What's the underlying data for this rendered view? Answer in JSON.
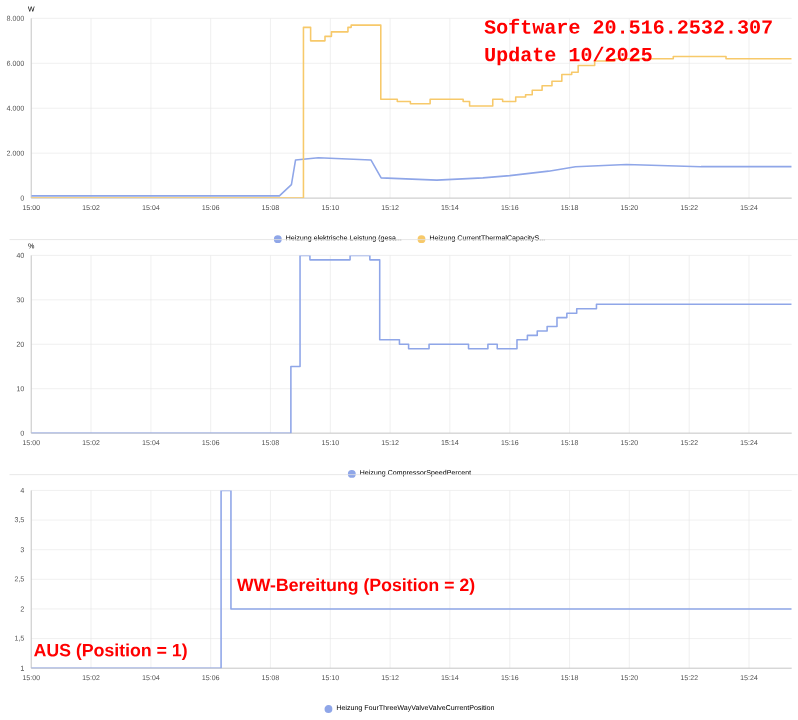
{
  "chart_data": [
    {
      "type": "line",
      "ylabel": "W",
      "legend": "bottom",
      "grid": true,
      "xlim": [
        15,
        15.4238
      ],
      "ylim": [
        0,
        8000
      ],
      "xticks": [
        {
          "value": 15,
          "label": "15:00"
        },
        {
          "value": 15.0333,
          "label": "15:02"
        },
        {
          "value": 15.0667,
          "label": "15:04"
        },
        {
          "value": 15.1,
          "label": "15:06"
        },
        {
          "value": 15.1333,
          "label": "15:08"
        },
        {
          "value": 15.1667,
          "label": "15:10"
        },
        {
          "value": 15.2,
          "label": "15:12"
        },
        {
          "value": 15.2333,
          "label": "15:14"
        },
        {
          "value": 15.2667,
          "label": "15:16"
        },
        {
          "value": 15.3,
          "label": "15:18"
        },
        {
          "value": 15.3333,
          "label": "15:20"
        },
        {
          "value": 15.3667,
          "label": "15:22"
        },
        {
          "value": 15.4,
          "label": "15:24"
        }
      ],
      "yticks": [
        0,
        {
          "value": 2000,
          "label": "2.000"
        },
        {
          "value": 4000,
          "label": "4.000"
        },
        {
          "value": 6000,
          "label": "6.000"
        },
        {
          "value": 8000,
          "label": "8.000"
        }
      ],
      "annotations": [
        "Software 20.516.2532.307",
        "Update 10/2025"
      ],
      "series": [
        {
          "name": "Heizung elektrische Leistung (gesa...",
          "color": "#8fa6e8",
          "type": "line",
          "x": [
            15.0,
            15.105,
            15.1083,
            15.1383,
            15.145,
            15.1473,
            15.16,
            15.1893,
            15.195,
            15.226,
            15.2517,
            15.2667,
            15.2883,
            15.3033,
            15.3317,
            15.3733,
            15.4238
          ],
          "values": [
            100,
            100,
            100,
            100,
            600,
            1700,
            1800,
            1700,
            900,
            800,
            900,
            1000,
            1200,
            1400,
            1500,
            1400,
            1400
          ]
        },
        {
          "name": "Heizung CurrentThermalCapacityS...",
          "color": "#f7c96a",
          "type": "step",
          "x": [
            15.0,
            15.1517,
            15.1557,
            15.1637,
            15.1673,
            15.1765,
            15.1783,
            15.1948,
            15.204,
            15.2113,
            15.2223,
            15.2407,
            15.2443,
            15.2572,
            15.2627,
            15.27,
            15.2755,
            15.2792,
            15.2847,
            15.2902,
            15.2957,
            15.3012,
            15.3048,
            15.314,
            15.3248,
            15.3578,
            15.3872,
            15.4238
          ],
          "values": [
            0,
            7600,
            7000,
            7200,
            7400,
            7600,
            7700,
            4400,
            4300,
            4200,
            4400,
            4300,
            4100,
            4400,
            4300,
            4500,
            4600,
            4800,
            5000,
            5200,
            5500,
            5600,
            5900,
            6100,
            6200,
            6300,
            6200,
            6200
          ]
        }
      ]
    },
    {
      "type": "step",
      "ylabel": "%",
      "legend": "bottom",
      "grid": true,
      "xlim": [
        15,
        15.4238
      ],
      "ylim": [
        0,
        40
      ],
      "xticks": [
        {
          "value": 15,
          "label": "15:00"
        },
        {
          "value": 15.0333,
          "label": "15:02"
        },
        {
          "value": 15.0667,
          "label": "15:04"
        },
        {
          "value": 15.1,
          "label": "15:06"
        },
        {
          "value": 15.1333,
          "label": "15:08"
        },
        {
          "value": 15.1667,
          "label": "15:10"
        },
        {
          "value": 15.2,
          "label": "15:12"
        },
        {
          "value": 15.2333,
          "label": "15:14"
        },
        {
          "value": 15.2667,
          "label": "15:16"
        },
        {
          "value": 15.3,
          "label": "15:18"
        },
        {
          "value": 15.3333,
          "label": "15:20"
        },
        {
          "value": 15.3667,
          "label": "15:22"
        },
        {
          "value": 15.4,
          "label": "15:24"
        }
      ],
      "yticks": [
        0,
        10,
        20,
        30,
        40
      ],
      "series": [
        {
          "name": "Heizung CompressorSpeedPercent",
          "color": "#8fa6e8",
          "x": [
            15.0,
            15.1447,
            15.1498,
            15.1553,
            15.1777,
            15.1887,
            15.1942,
            15.2052,
            15.2103,
            15.2217,
            15.2437,
            15.2545,
            15.2597,
            15.2707,
            15.2765,
            15.282,
            15.2875,
            15.293,
            15.2985,
            15.304,
            15.315,
            15.4238
          ],
          "values": [
            0,
            15,
            40,
            39,
            40,
            39,
            21,
            20,
            19,
            20,
            19,
            20,
            19,
            21,
            22,
            23,
            24,
            26,
            27,
            28,
            29,
            29
          ]
        }
      ]
    },
    {
      "type": "step",
      "legend": "bottom",
      "grid": true,
      "xlim": [
        15,
        15.4238
      ],
      "ylim": [
        1,
        4
      ],
      "xticks": [
        {
          "value": 15,
          "label": "15:00"
        },
        {
          "value": 15.0333,
          "label": "15:02"
        },
        {
          "value": 15.0667,
          "label": "15:04"
        },
        {
          "value": 15.1,
          "label": "15:06"
        },
        {
          "value": 15.1333,
          "label": "15:08"
        },
        {
          "value": 15.1667,
          "label": "15:10"
        },
        {
          "value": 15.2,
          "label": "15:12"
        },
        {
          "value": 15.2333,
          "label": "15:14"
        },
        {
          "value": 15.2667,
          "label": "15:16"
        },
        {
          "value": 15.3,
          "label": "15:18"
        },
        {
          "value": 15.3333,
          "label": "15:20"
        },
        {
          "value": 15.3667,
          "label": "15:22"
        },
        {
          "value": 15.4,
          "label": "15:24"
        }
      ],
      "yticks": [
        1,
        {
          "value": 1.5,
          "label": "1,5"
        },
        2,
        {
          "value": 2.5,
          "label": "2,5"
        },
        3,
        {
          "value": 3.5,
          "label": "3,5"
        },
        4
      ],
      "annotations": [
        {
          "text": "WW-Bereitung (Position = 2)",
          "x": 15.1133,
          "y": 2.2
        },
        {
          "text": "AUS (Position = 1)",
          "x": 15.0,
          "y": 1.1
        }
      ],
      "series": [
        {
          "name": "Heizung FourThreeWayValveValveCurrentPosition",
          "color": "#8fa6e8",
          "x": [
            15.0,
            15.1058,
            15.1113,
            15.4238
          ],
          "values": [
            1,
            4,
            2,
            2
          ]
        }
      ]
    }
  ]
}
